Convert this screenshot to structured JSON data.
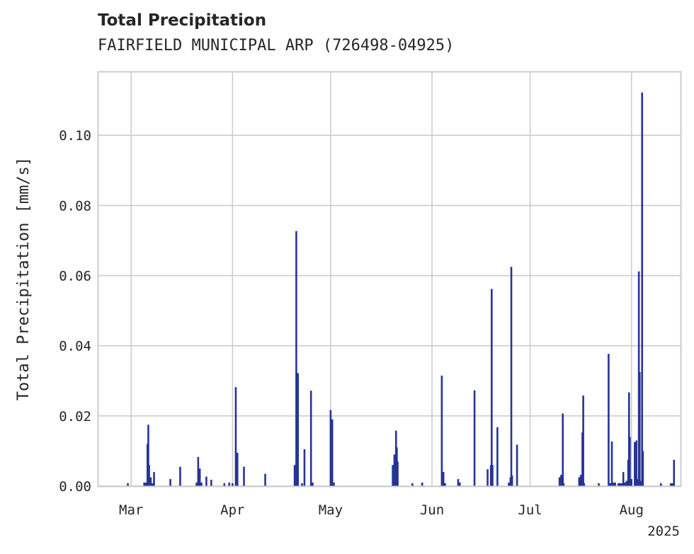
{
  "chart_data": {
    "type": "bar",
    "title": "Total Precipitation",
    "subtitle": "FAIRFIELD MUNICIPAL ARP (726498-04925)",
    "ylabel": "Total Precipitation [mm/s]",
    "xlabel": "",
    "year_label": "2025",
    "x_tick_labels": [
      {
        "date": "2025-03-01",
        "label": "Mar"
      },
      {
        "date": "2025-04-01",
        "label": "Apr"
      },
      {
        "date": "2025-05-01",
        "label": "May"
      },
      {
        "date": "2025-06-01",
        "label": "Jun"
      },
      {
        "date": "2025-07-01",
        "label": "Jul"
      },
      {
        "date": "2025-08-01",
        "label": "Aug"
      }
    ],
    "y_ticks": [
      "0.00",
      "0.02",
      "0.04",
      "0.06",
      "0.08",
      "0.10"
    ],
    "xlim": [
      "2025-02-19",
      "2025-08-16"
    ],
    "ylim": [
      0,
      0.118
    ],
    "grid": true,
    "bar_color": "#253494",
    "points": [
      {
        "x": "2025-02-28",
        "y": 0.0008
      },
      {
        "x": "2025-03-05",
        "y": 0.001
      },
      {
        "x": "2025-03-05T12",
        "y": 0.001
      },
      {
        "x": "2025-03-06",
        "y": 0.012
      },
      {
        "x": "2025-03-06T06",
        "y": 0.0175
      },
      {
        "x": "2025-03-06T12",
        "y": 0.006
      },
      {
        "x": "2025-03-07",
        "y": 0.0025
      },
      {
        "x": "2025-03-07T12",
        "y": 0.0008
      },
      {
        "x": "2025-03-08",
        "y": 0.004
      },
      {
        "x": "2025-03-13",
        "y": 0.002
      },
      {
        "x": "2025-03-16",
        "y": 0.0055
      },
      {
        "x": "2025-03-21",
        "y": 0.001
      },
      {
        "x": "2025-03-21T12",
        "y": 0.0083
      },
      {
        "x": "2025-03-22",
        "y": 0.005
      },
      {
        "x": "2025-03-22T12",
        "y": 0.001
      },
      {
        "x": "2025-03-24",
        "y": 0.0027
      },
      {
        "x": "2025-03-25T12",
        "y": 0.0018
      },
      {
        "x": "2025-03-29T12",
        "y": 0.0008
      },
      {
        "x": "2025-03-31",
        "y": 0.001
      },
      {
        "x": "2025-04-01",
        "y": 0.0008
      },
      {
        "x": "2025-04-02",
        "y": 0.0282
      },
      {
        "x": "2025-04-02T12",
        "y": 0.0095
      },
      {
        "x": "2025-04-04T12",
        "y": 0.0055
      },
      {
        "x": "2025-04-11",
        "y": 0.0035
      },
      {
        "x": "2025-04-20",
        "y": 0.006
      },
      {
        "x": "2025-04-20T12",
        "y": 0.0727
      },
      {
        "x": "2025-04-21",
        "y": 0.0322
      },
      {
        "x": "2025-04-22T06",
        "y": 0.0008
      },
      {
        "x": "2025-04-23",
        "y": 0.0105
      },
      {
        "x": "2025-04-25",
        "y": 0.0272
      },
      {
        "x": "2025-04-25T12",
        "y": 0.001
      },
      {
        "x": "2025-05-01",
        "y": 0.0217
      },
      {
        "x": "2025-05-01T12",
        "y": 0.019
      },
      {
        "x": "2025-05-02",
        "y": 0.001
      },
      {
        "x": "2025-05-20",
        "y": 0.006
      },
      {
        "x": "2025-05-20T12",
        "y": 0.009
      },
      {
        "x": "2025-05-21",
        "y": 0.0158
      },
      {
        "x": "2025-05-21T06",
        "y": 0.011
      },
      {
        "x": "2025-05-21T12",
        "y": 0.007
      },
      {
        "x": "2025-05-26",
        "y": 0.0008
      },
      {
        "x": "2025-05-29",
        "y": 0.001
      },
      {
        "x": "2025-06-04",
        "y": 0.0315
      },
      {
        "x": "2025-06-04T12",
        "y": 0.004
      },
      {
        "x": "2025-06-05",
        "y": 0.0008
      },
      {
        "x": "2025-06-09",
        "y": 0.002
      },
      {
        "x": "2025-06-09T12",
        "y": 0.001
      },
      {
        "x": "2025-06-14",
        "y": 0.0273
      },
      {
        "x": "2025-06-18",
        "y": 0.0048
      },
      {
        "x": "2025-06-19",
        "y": 0.006
      },
      {
        "x": "2025-06-19T06",
        "y": 0.0562
      },
      {
        "x": "2025-06-19T12",
        "y": 0.006
      },
      {
        "x": "2025-06-21",
        "y": 0.0168
      },
      {
        "x": "2025-06-24T12",
        "y": 0.001
      },
      {
        "x": "2025-06-25",
        "y": 0.0025
      },
      {
        "x": "2025-06-25T06",
        "y": 0.0625
      },
      {
        "x": "2025-06-25T12",
        "y": 0.003
      },
      {
        "x": "2025-06-27",
        "y": 0.0118
      },
      {
        "x": "2025-07-10",
        "y": 0.0025
      },
      {
        "x": "2025-07-10T12",
        "y": 0.0032
      },
      {
        "x": "2025-07-11",
        "y": 0.0207
      },
      {
        "x": "2025-07-11T06",
        "y": 0.0008
      },
      {
        "x": "2025-07-16",
        "y": 0.0025
      },
      {
        "x": "2025-07-16T12",
        "y": 0.0032
      },
      {
        "x": "2025-07-17",
        "y": 0.0153
      },
      {
        "x": "2025-07-17T06",
        "y": 0.0258
      },
      {
        "x": "2025-07-17T12",
        "y": 0.0008
      },
      {
        "x": "2025-07-22",
        "y": 0.0008
      },
      {
        "x": "2025-07-25",
        "y": 0.0377
      },
      {
        "x": "2025-07-25T12",
        "y": 0.0008
      },
      {
        "x": "2025-07-26",
        "y": 0.0127
      },
      {
        "x": "2025-07-26T12",
        "y": 0.001
      },
      {
        "x": "2025-07-27",
        "y": 0.001
      },
      {
        "x": "2025-07-28",
        "y": 0.0008
      },
      {
        "x": "2025-07-28T12",
        "y": 0.0008
      },
      {
        "x": "2025-07-29",
        "y": 0.0008
      },
      {
        "x": "2025-07-29T12",
        "y": 0.004
      },
      {
        "x": "2025-07-30",
        "y": 0.001
      },
      {
        "x": "2025-07-30T12",
        "y": 0.0015
      },
      {
        "x": "2025-07-31",
        "y": 0.0075
      },
      {
        "x": "2025-07-31T06",
        "y": 0.0267
      },
      {
        "x": "2025-07-31T12",
        "y": 0.014
      },
      {
        "x": "2025-08-01",
        "y": 0.002
      },
      {
        "x": "2025-08-02",
        "y": 0.0125
      },
      {
        "x": "2025-08-02T12",
        "y": 0.013
      },
      {
        "x": "2025-08-03",
        "y": 0.002
      },
      {
        "x": "2025-08-03T06",
        "y": 0.0612
      },
      {
        "x": "2025-08-03T12",
        "y": 0.0325
      },
      {
        "x": "2025-08-04",
        "y": 0.0015
      },
      {
        "x": "2025-08-04T06",
        "y": 0.1122
      },
      {
        "x": "2025-08-04T12",
        "y": 0.01
      },
      {
        "x": "2025-08-10",
        "y": 0.0008
      },
      {
        "x": "2025-08-13",
        "y": 0.0008
      },
      {
        "x": "2025-08-13T12",
        "y": 0.0008
      },
      {
        "x": "2025-08-14",
        "y": 0.0075
      }
    ]
  }
}
